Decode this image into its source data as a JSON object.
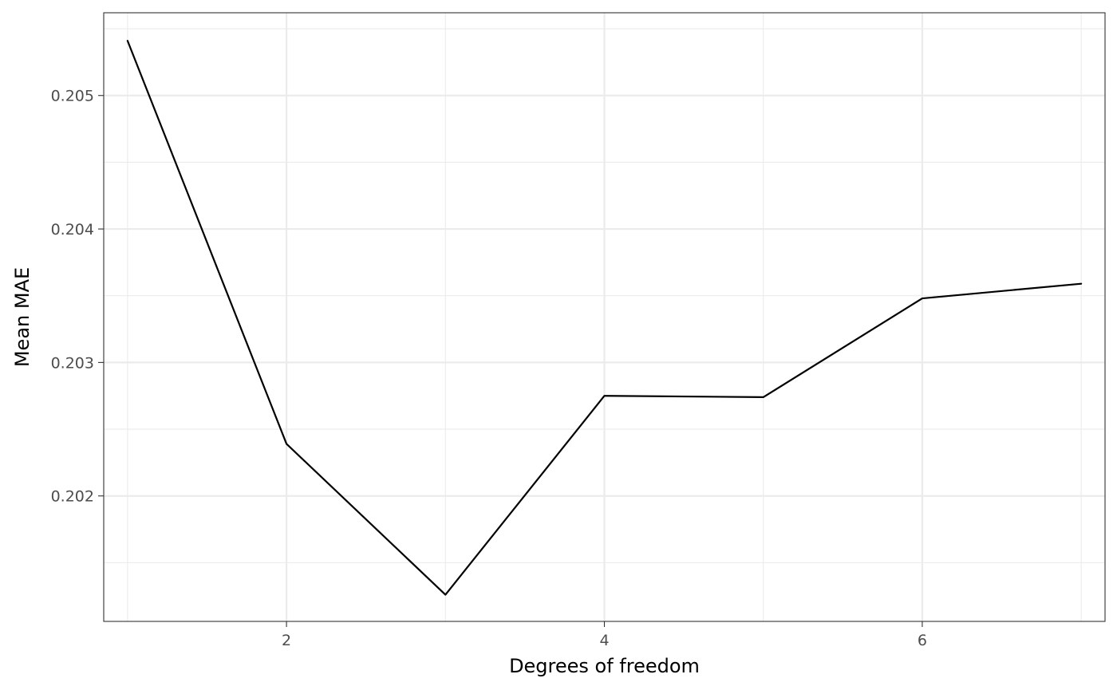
{
  "chart_data": {
    "type": "line",
    "title": "",
    "xlabel": "Degrees of freedom",
    "ylabel": "Mean MAE",
    "x": [
      1,
      2,
      3,
      4,
      5,
      6,
      7
    ],
    "series": [
      {
        "values": [
          0.20541,
          0.20239,
          0.20126,
          0.20275,
          0.20274,
          0.20348,
          0.20359
        ]
      }
    ],
    "xlim": [
      0.85,
      7.15
    ],
    "ylim": [
      0.20106,
      0.20562
    ],
    "x_major_ticks": [
      2,
      4,
      6
    ],
    "x_minor_ticks": [
      1,
      3,
      5,
      7
    ],
    "y_major_ticks": [
      0.202,
      0.203,
      0.204,
      0.205
    ],
    "y_minor_ticks": [
      0.2015,
      0.2025,
      0.2035,
      0.2045,
      0.2055
    ],
    "x_tick_labels": [
      "2",
      "4",
      "6"
    ],
    "y_tick_labels": [
      "0.202",
      "0.203",
      "0.204",
      "0.205"
    ],
    "grid": true,
    "legend": "none",
    "line_color": "#000000"
  }
}
